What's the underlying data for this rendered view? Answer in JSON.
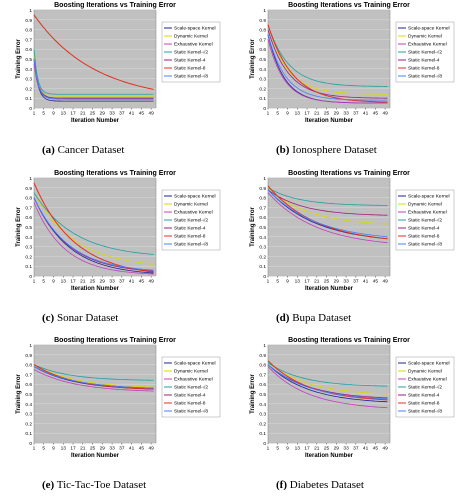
{
  "colors": {
    "plot_bg": "#c0c0c0",
    "grid": "#e0e0e0",
    "series": [
      "#1f1f9e",
      "#d8d800",
      "#c040c0",
      "#20a0a0",
      "#9a2080",
      "#e03020",
      "#4080ff"
    ]
  },
  "legend_labels": [
    "Scale-space Kernel",
    "Dynamic Kernel",
    "Exhaustive Kernel",
    "Static Kernel-√2",
    "Static Kernel-4",
    "Static Kernel-8",
    "Static Kernel-√8"
  ],
  "chart_data": [
    {
      "type": "line",
      "caption_letter": "(a)",
      "caption_text": "Cancer Dataset",
      "title": "Boosting Iterations vs Training Error",
      "xlabel": "Iteration Number",
      "ylabel": "Training Error",
      "xlim": [
        1,
        51
      ],
      "ylim": [
        0,
        1
      ],
      "yticks": [
        "0",
        "0.1",
        "0.2",
        "0.3",
        "0.4",
        "0.5",
        "0.6",
        "0.7",
        "0.8",
        "0.9",
        "1"
      ],
      "xticks": [
        "1",
        "5",
        "9",
        "13",
        "17",
        "21",
        "25",
        "29",
        "33",
        "37",
        "41",
        "45",
        "49"
      ],
      "legend": "right",
      "series": [
        {
          "name": "Scale-space Kernel",
          "start": 0.5,
          "end": 0.07,
          "k": 0.6
        },
        {
          "name": "Dynamic Kernel",
          "start": 0.55,
          "end": 0.12,
          "k": 0.7
        },
        {
          "name": "Exhaustive Kernel",
          "start": 0.45,
          "end": 0.1,
          "k": 0.6
        },
        {
          "name": "Static Kernel-√2",
          "start": 0.6,
          "end": 0.14,
          "k": 0.7
        },
        {
          "name": "Static Kernel-4",
          "start": 0.5,
          "end": 0.1,
          "k": 0.6
        },
        {
          "name": "Static Kernel-8",
          "start": 0.95,
          "end": 0.19,
          "k": 0.04
        },
        {
          "name": "Static Kernel-√8",
          "start": 0.5,
          "end": 0.09,
          "k": 0.6
        }
      ]
    },
    {
      "type": "line",
      "caption_letter": "(b)",
      "caption_text": "Ionosphere Dataset",
      "title": "Boosting Iterations vs Training Error",
      "xlabel": "Iteration Number",
      "ylabel": "Training Error",
      "xlim": [
        1,
        51
      ],
      "ylim": [
        0,
        1
      ],
      "yticks": [
        "0",
        "0.1",
        "0.2",
        "0.3",
        "0.4",
        "0.5",
        "0.6",
        "0.7",
        "0.8",
        "0.9",
        "1"
      ],
      "xticks": [
        "1",
        "5",
        "9",
        "13",
        "17",
        "21",
        "25",
        "29",
        "33",
        "37",
        "41",
        "45",
        "49"
      ],
      "legend": "right",
      "series": [
        {
          "name": "Scale-space Kernel",
          "start": 0.75,
          "end": 0.05,
          "k": 0.15
        },
        {
          "name": "Dynamic Kernel",
          "start": 0.8,
          "end": 0.14,
          "k": 0.12
        },
        {
          "name": "Exhaustive Kernel",
          "start": 0.7,
          "end": 0.05,
          "k": 0.15
        },
        {
          "name": "Static Kernel-√2",
          "start": 0.85,
          "end": 0.22,
          "k": 0.12
        },
        {
          "name": "Static Kernel-4",
          "start": 0.8,
          "end": 0.1,
          "k": 0.12
        },
        {
          "name": "Static Kernel-8",
          "start": 0.85,
          "end": 0.06,
          "k": 0.1
        },
        {
          "name": "Static Kernel-√8",
          "start": 0.75,
          "end": 0.08,
          "k": 0.14
        }
      ]
    },
    {
      "type": "line",
      "caption_letter": "(c)",
      "caption_text": "Sonar Dataset",
      "title": "Boosting Iterations vs Training Error",
      "xlabel": "Iteration Number",
      "ylabel": "Training Error",
      "xlim": [
        1,
        51
      ],
      "ylim": [
        0,
        1
      ],
      "yticks": [
        "0",
        "0.1",
        "0.2",
        "0.3",
        "0.4",
        "0.5",
        "0.6",
        "0.7",
        "0.8",
        "0.9",
        "1"
      ],
      "xticks": [
        "1",
        "5",
        "9",
        "13",
        "17",
        "21",
        "25",
        "29",
        "33",
        "37",
        "41",
        "45",
        "49"
      ],
      "legend": "right",
      "series": [
        {
          "name": "Scale-space Kernel",
          "start": 0.8,
          "end": 0.03,
          "k": 0.07
        },
        {
          "name": "Dynamic Kernel",
          "start": 0.85,
          "end": 0.12,
          "k": 0.06
        },
        {
          "name": "Exhaustive Kernel",
          "start": 0.75,
          "end": 0.02,
          "k": 0.08
        },
        {
          "name": "Static Kernel-√2",
          "start": 0.85,
          "end": 0.22,
          "k": 0.06
        },
        {
          "name": "Static Kernel-4",
          "start": 0.8,
          "end": 0.05,
          "k": 0.07
        },
        {
          "name": "Static Kernel-8",
          "start": 0.95,
          "end": 0.04,
          "k": 0.06
        },
        {
          "name": "Static Kernel-√8",
          "start": 0.8,
          "end": 0.06,
          "k": 0.07
        }
      ]
    },
    {
      "type": "line",
      "caption_letter": "(d)",
      "caption_text": "Bupa Dataset",
      "title": "Boosting Iterations vs Training Error",
      "xlabel": "Iteration Number",
      "ylabel": "Training Error",
      "xlim": [
        1,
        51
      ],
      "ylim": [
        0,
        1
      ],
      "yticks": [
        "0",
        "0.1",
        "0.2",
        "0.3",
        "0.4",
        "0.5",
        "0.6",
        "0.7",
        "0.8",
        "0.9",
        "1"
      ],
      "xticks": [
        "1",
        "5",
        "9",
        "13",
        "17",
        "21",
        "25",
        "29",
        "33",
        "37",
        "41",
        "45",
        "49"
      ],
      "legend": "right",
      "series": [
        {
          "name": "Scale-space Kernel",
          "start": 0.88,
          "end": 0.38,
          "k": 0.05
        },
        {
          "name": "Dynamic Kernel",
          "start": 0.9,
          "end": 0.53,
          "k": 0.06
        },
        {
          "name": "Exhaustive Kernel",
          "start": 0.85,
          "end": 0.34,
          "k": 0.05
        },
        {
          "name": "Static Kernel-√2",
          "start": 0.9,
          "end": 0.72,
          "k": 0.08
        },
        {
          "name": "Static Kernel-4",
          "start": 0.88,
          "end": 0.62,
          "k": 0.07
        },
        {
          "name": "Static Kernel-8",
          "start": 0.92,
          "end": 0.38,
          "k": 0.05
        },
        {
          "name": "Static Kernel-√8",
          "start": 0.88,
          "end": 0.4,
          "k": 0.05
        }
      ]
    },
    {
      "type": "line",
      "caption_letter": "(e)",
      "caption_text": "Tic-Tac-Toe Dataset",
      "title": "Boosting Iterations vs Training Error",
      "xlabel": "Iteration Number",
      "ylabel": "Training Error",
      "xlim": [
        1,
        51
      ],
      "ylim": [
        0,
        1
      ],
      "yticks": [
        "0",
        "0.1",
        "0.2",
        "0.3",
        "0.4",
        "0.5",
        "0.6",
        "0.7",
        "0.8",
        "0.9",
        "1"
      ],
      "xticks": [
        "1",
        "5",
        "9",
        "13",
        "17",
        "21",
        "25",
        "29",
        "33",
        "37",
        "41",
        "45",
        "49"
      ],
      "legend": "right",
      "series": [
        {
          "name": "Scale-space Kernel",
          "start": 0.78,
          "end": 0.55,
          "k": 0.06
        },
        {
          "name": "Dynamic Kernel",
          "start": 0.8,
          "end": 0.57,
          "k": 0.06
        },
        {
          "name": "Exhaustive Kernel",
          "start": 0.75,
          "end": 0.53,
          "k": 0.06
        },
        {
          "name": "Static Kernel-√2",
          "start": 0.8,
          "end": 0.64,
          "k": 0.07
        },
        {
          "name": "Static Kernel-4",
          "start": 0.78,
          "end": 0.56,
          "k": 0.06
        },
        {
          "name": "Static Kernel-8",
          "start": 0.8,
          "end": 0.55,
          "k": 0.06
        },
        {
          "name": "Static Kernel-√8",
          "start": 0.78,
          "end": 0.56,
          "k": 0.06
        }
      ]
    },
    {
      "type": "line",
      "caption_letter": "(f)",
      "caption_text": "Diabetes Dataset",
      "title": "Boosting Iterations vs Training Error",
      "xlabel": "Iteration Number",
      "ylabel": "Training Error",
      "xlim": [
        1,
        51
      ],
      "ylim": [
        0,
        1
      ],
      "yticks": [
        "0",
        "0.1",
        "0.2",
        "0.3",
        "0.4",
        "0.5",
        "0.6",
        "0.7",
        "0.8",
        "0.9",
        "1"
      ],
      "xticks": [
        "1",
        "5",
        "9",
        "13",
        "17",
        "21",
        "25",
        "29",
        "33",
        "37",
        "41",
        "45",
        "49"
      ],
      "legend": "right",
      "series": [
        {
          "name": "Scale-space Kernel",
          "start": 0.8,
          "end": 0.42,
          "k": 0.06
        },
        {
          "name": "Dynamic Kernel",
          "start": 0.82,
          "end": 0.5,
          "k": 0.06
        },
        {
          "name": "Exhaustive Kernel",
          "start": 0.78,
          "end": 0.36,
          "k": 0.06
        },
        {
          "name": "Static Kernel-√2",
          "start": 0.82,
          "end": 0.58,
          "k": 0.07
        },
        {
          "name": "Static Kernel-4",
          "start": 0.8,
          "end": 0.46,
          "k": 0.06
        },
        {
          "name": "Static Kernel-8",
          "start": 0.84,
          "end": 0.44,
          "k": 0.06
        },
        {
          "name": "Static Kernel-√8",
          "start": 0.8,
          "end": 0.45,
          "k": 0.06
        }
      ]
    }
  ]
}
